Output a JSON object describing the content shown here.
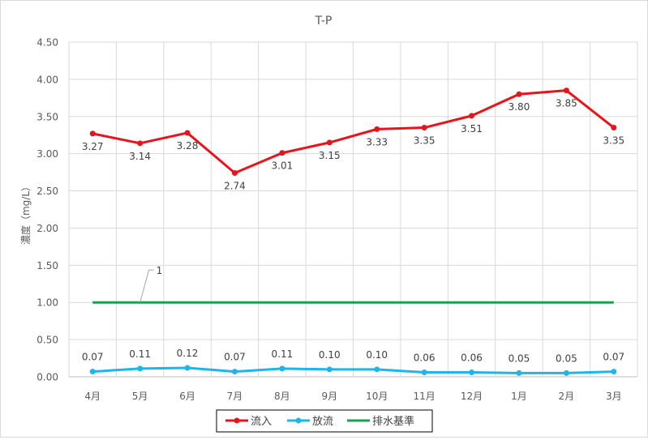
{
  "chart_data": {
    "type": "line",
    "title": "T-P",
    "xlabel": "",
    "ylabel": "濃度（mg/L）",
    "categories": [
      "4月",
      "5月",
      "6月",
      "7月",
      "8月",
      "9月",
      "10月",
      "11月",
      "12月",
      "1月",
      "2月",
      "3月"
    ],
    "ylim": [
      0,
      4.5
    ],
    "yticks": [
      "0.00",
      "0.50",
      "1.00",
      "1.50",
      "2.00",
      "2.50",
      "3.00",
      "3.50",
      "4.00",
      "4.50"
    ],
    "grid": true,
    "legend_position": "bottom",
    "series": [
      {
        "name": "流入",
        "color": "#e8141c",
        "marker": true,
        "label_position": "below",
        "values": [
          3.27,
          3.14,
          3.28,
          2.74,
          3.01,
          3.15,
          3.33,
          3.35,
          3.51,
          3.8,
          3.85,
          3.35
        ],
        "labels": [
          "3.27",
          "3.14",
          "3.28",
          "2.74",
          "3.01",
          "3.15",
          "3.33",
          "3.35",
          "3.51",
          "3.80",
          "3.85",
          "3.35"
        ]
      },
      {
        "name": "放流",
        "color": "#1eb4ec",
        "marker": true,
        "label_position": "above",
        "values": [
          0.07,
          0.11,
          0.12,
          0.07,
          0.11,
          0.1,
          0.1,
          0.06,
          0.06,
          0.05,
          0.05,
          0.07
        ],
        "labels": [
          "0.07",
          "0.11",
          "0.12",
          "0.07",
          "0.11",
          "0.10",
          "0.10",
          "0.06",
          "0.06",
          "0.05",
          "0.05",
          "0.07"
        ]
      },
      {
        "name": "排水基準",
        "color": "#1ea04b",
        "marker": false,
        "values": [
          1,
          1,
          1,
          1,
          1,
          1,
          1,
          1,
          1,
          1,
          1,
          1
        ]
      }
    ],
    "annotation": {
      "text": "1",
      "series": "排水基準",
      "category_index": 1
    }
  }
}
